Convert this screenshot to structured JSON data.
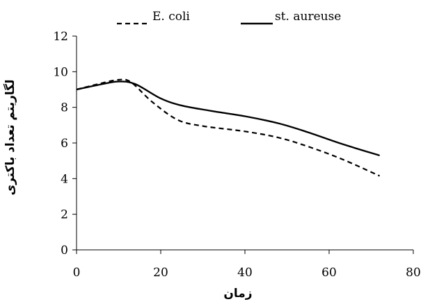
{
  "chart_data": {
    "type": "line",
    "title": "",
    "xlabel": "زمان",
    "ylabel": "لگاریتم تعداد باکتری",
    "xlim": [
      0,
      80
    ],
    "ylim": [
      0,
      12
    ],
    "x_ticks": [
      "0",
      "20",
      "40",
      "60",
      "80"
    ],
    "y_ticks": [
      "0",
      "2",
      "4",
      "6",
      "8",
      "10",
      "12"
    ],
    "grid": false,
    "legend_position": "top",
    "series": [
      {
        "name": "E. coli",
        "style": "dashed",
        "color": "#000000",
        "points": [
          [
            0,
            9.0
          ],
          [
            5,
            9.3
          ],
          [
            10,
            9.55
          ],
          [
            13,
            9.4
          ],
          [
            18,
            8.3
          ],
          [
            24,
            7.3
          ],
          [
            30,
            6.95
          ],
          [
            40,
            6.65
          ],
          [
            48,
            6.3
          ],
          [
            55,
            5.8
          ],
          [
            63,
            5.1
          ],
          [
            72,
            4.15
          ]
        ]
      },
      {
        "name": "st. aureuse",
        "style": "solid",
        "color": "#000000",
        "points": [
          [
            0,
            9.0
          ],
          [
            5,
            9.25
          ],
          [
            10,
            9.45
          ],
          [
            14,
            9.3
          ],
          [
            20,
            8.5
          ],
          [
            25,
            8.1
          ],
          [
            32,
            7.8
          ],
          [
            40,
            7.5
          ],
          [
            48,
            7.1
          ],
          [
            55,
            6.6
          ],
          [
            63,
            5.95
          ],
          [
            72,
            5.3
          ]
        ]
      }
    ]
  }
}
